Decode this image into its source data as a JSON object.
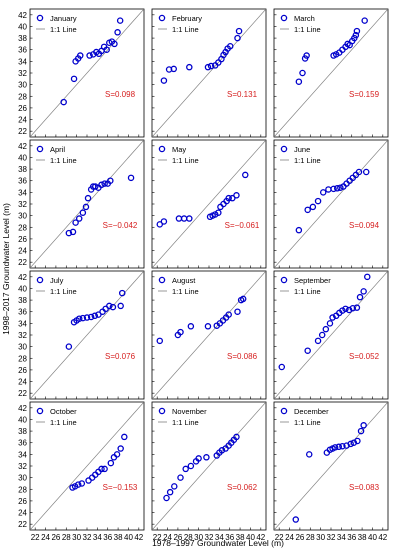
{
  "colors": {
    "marker": "#0000cc",
    "stat": "#d62020",
    "line": "#808080",
    "frame": "#000000"
  },
  "chart_data": {
    "type": "scatter",
    "xlabel": "1978–1997 Groundwater Level (m)",
    "ylabel": "1998–2017 Groundwater Level (m)",
    "xlim": [
      21,
      43
    ],
    "ylim": [
      21,
      43
    ],
    "xticks": [
      "22",
      "24",
      "26",
      "28",
      "30",
      "32",
      "34",
      "36",
      "38",
      "40",
      "42"
    ],
    "yticks": [
      "22",
      "24",
      "26",
      "28",
      "30",
      "32",
      "34",
      "36",
      "38",
      "40",
      "42"
    ],
    "legend": {
      "marker_label": "January",
      "line_label": "1:1 Line"
    },
    "panels": [
      {
        "name": "January",
        "stat": "S=0.098",
        "points": [
          [
            27.5,
            27
          ],
          [
            29.5,
            31
          ],
          [
            29.8,
            34
          ],
          [
            30.3,
            34.5
          ],
          [
            30.7,
            35
          ],
          [
            32.5,
            35
          ],
          [
            33.2,
            35.2
          ],
          [
            33.8,
            35.6
          ],
          [
            34.3,
            35.3
          ],
          [
            34.8,
            35.8
          ],
          [
            35.3,
            36.5
          ],
          [
            35.8,
            36
          ],
          [
            36.3,
            37.2
          ],
          [
            36.8,
            37.4
          ],
          [
            37.3,
            37
          ],
          [
            37.9,
            39
          ],
          [
            38.4,
            41
          ]
        ]
      },
      {
        "name": "February",
        "stat": "S=0.131",
        "points": [
          [
            20.3,
            28
          ],
          [
            23.3,
            30.7
          ],
          [
            24.3,
            32.6
          ],
          [
            25.2,
            32.7
          ],
          [
            28.2,
            33
          ],
          [
            31.8,
            33
          ],
          [
            32.4,
            33.2
          ],
          [
            33.2,
            33.3
          ],
          [
            33.8,
            33.8
          ],
          [
            34.4,
            34.4
          ],
          [
            34.8,
            35.1
          ],
          [
            35.2,
            35.6
          ],
          [
            35.6,
            36.2
          ],
          [
            36.1,
            36.6
          ],
          [
            37.5,
            38
          ],
          [
            37.8,
            39.2
          ]
        ]
      },
      {
        "name": "March",
        "stat": "S=0.159",
        "points": [
          [
            25.8,
            30.5
          ],
          [
            26.5,
            32
          ],
          [
            27,
            34.5
          ],
          [
            27.3,
            35
          ],
          [
            32.5,
            35
          ],
          [
            33,
            35.2
          ],
          [
            33.6,
            35.5
          ],
          [
            34.2,
            36
          ],
          [
            34.8,
            36.5
          ],
          [
            35.2,
            37
          ],
          [
            35.6,
            36.8
          ],
          [
            36.1,
            37.5
          ],
          [
            36.5,
            38
          ],
          [
            36.8,
            38.5
          ],
          [
            37,
            39.2
          ],
          [
            38.5,
            41
          ]
        ]
      },
      {
        "name": "April",
        "stat": "S=−0.042",
        "points": [
          [
            28.5,
            27
          ],
          [
            29.3,
            27.2
          ],
          [
            29.8,
            28.8
          ],
          [
            30.5,
            29.5
          ],
          [
            31.2,
            30.5
          ],
          [
            31.8,
            31.5
          ],
          [
            32.2,
            33
          ],
          [
            32.8,
            34.5
          ],
          [
            33.2,
            35
          ],
          [
            33.6,
            35
          ],
          [
            34.2,
            34.8
          ],
          [
            34.8,
            35.3
          ],
          [
            35.4,
            35.5
          ],
          [
            36,
            35.5
          ],
          [
            36.5,
            36
          ],
          [
            40.5,
            36.5
          ]
        ]
      },
      {
        "name": "May",
        "stat": "S=−0.061",
        "points": [
          [
            22.5,
            28.5
          ],
          [
            23.3,
            29
          ],
          [
            26.2,
            29.5
          ],
          [
            27.2,
            29.5
          ],
          [
            28.2,
            29.5
          ],
          [
            32.2,
            29.8
          ],
          [
            32.7,
            30
          ],
          [
            33.2,
            30.2
          ],
          [
            33.8,
            30.5
          ],
          [
            34.2,
            31.5
          ],
          [
            34.8,
            32
          ],
          [
            35.4,
            32.5
          ],
          [
            35.8,
            33
          ],
          [
            36.5,
            33
          ],
          [
            37.3,
            33.5
          ],
          [
            39,
            37
          ]
        ]
      },
      {
        "name": "June",
        "stat": "S=0.094",
        "points": [
          [
            25.8,
            27.5
          ],
          [
            27.5,
            31
          ],
          [
            28.5,
            31.5
          ],
          [
            29.5,
            32.5
          ],
          [
            30.5,
            34
          ],
          [
            31.5,
            34.5
          ],
          [
            32.5,
            34.6
          ],
          [
            33.2,
            34.7
          ],
          [
            33.8,
            34.8
          ],
          [
            34.4,
            35
          ],
          [
            35,
            35.5
          ],
          [
            35.6,
            36
          ],
          [
            36.2,
            36.5
          ],
          [
            36.8,
            37
          ],
          [
            37.4,
            37.5
          ],
          [
            38.8,
            37.5
          ]
        ]
      },
      {
        "name": "July",
        "stat": "S=0.076",
        "points": [
          [
            28.5,
            30
          ],
          [
            29.5,
            34.2
          ],
          [
            30,
            34.5
          ],
          [
            30.5,
            34.8
          ],
          [
            31.2,
            34.9
          ],
          [
            32,
            35
          ],
          [
            32.8,
            35.1
          ],
          [
            33.5,
            35.3
          ],
          [
            34.2,
            35.5
          ],
          [
            35,
            36
          ],
          [
            35.6,
            36.5
          ],
          [
            36.3,
            37
          ],
          [
            37,
            36.8
          ],
          [
            38.5,
            37
          ],
          [
            38.8,
            39.2
          ]
        ]
      },
      {
        "name": "August",
        "stat": "S=0.086",
        "points": [
          [
            22.5,
            31
          ],
          [
            26,
            32
          ],
          [
            26.5,
            32.5
          ],
          [
            28.5,
            33.5
          ],
          [
            31.8,
            33.5
          ],
          [
            33.5,
            33.6
          ],
          [
            34.1,
            34
          ],
          [
            34.7,
            34.5
          ],
          [
            35.3,
            35
          ],
          [
            35.8,
            35.5
          ],
          [
            37.5,
            36
          ],
          [
            38.2,
            38
          ],
          [
            38.6,
            38.2
          ]
        ]
      },
      {
        "name": "September",
        "stat": "S=0.052",
        "points": [
          [
            22.5,
            26.5
          ],
          [
            27.5,
            29.3
          ],
          [
            29.5,
            31
          ],
          [
            30.3,
            32
          ],
          [
            31,
            33
          ],
          [
            31.8,
            34
          ],
          [
            32.3,
            35
          ],
          [
            33,
            35.3
          ],
          [
            33.6,
            35.8
          ],
          [
            34.2,
            36.2
          ],
          [
            34.8,
            36.5
          ],
          [
            35.5,
            36.3
          ],
          [
            36.2,
            36.6
          ],
          [
            37,
            36.7
          ],
          [
            37.6,
            38.5
          ],
          [
            38.3,
            39.5
          ],
          [
            39,
            42
          ]
        ]
      },
      {
        "name": "October",
        "stat": "S=−0.153",
        "points": [
          [
            29.2,
            28.3
          ],
          [
            29.7,
            28.5
          ],
          [
            30.3,
            28.8
          ],
          [
            31,
            29
          ],
          [
            32.3,
            29.5
          ],
          [
            33,
            30
          ],
          [
            33.6,
            30.5
          ],
          [
            34.2,
            31
          ],
          [
            34.8,
            31.5
          ],
          [
            35.4,
            31.5
          ],
          [
            36.6,
            32.5
          ],
          [
            37.2,
            33.5
          ],
          [
            37.8,
            34
          ],
          [
            38.5,
            35
          ],
          [
            39.2,
            37
          ]
        ]
      },
      {
        "name": "November",
        "stat": "S=0.062",
        "points": [
          [
            23.8,
            26.5
          ],
          [
            24.5,
            27.5
          ],
          [
            25.3,
            28.5
          ],
          [
            26.5,
            30
          ],
          [
            27.5,
            31.5
          ],
          [
            28.5,
            32
          ],
          [
            29.5,
            32.8
          ],
          [
            30,
            33.3
          ],
          [
            31.5,
            33.5
          ],
          [
            33.5,
            33.8
          ],
          [
            34,
            34.3
          ],
          [
            34.5,
            34.7
          ],
          [
            35.2,
            35
          ],
          [
            35.8,
            35.5
          ],
          [
            36.3,
            36
          ],
          [
            36.8,
            36.5
          ],
          [
            37.3,
            37
          ]
        ]
      },
      {
        "name": "December",
        "stat": "S=0.083",
        "points": [
          [
            25.2,
            22.8
          ],
          [
            27.8,
            34
          ],
          [
            31.2,
            34.3
          ],
          [
            31.8,
            34.8
          ],
          [
            32.3,
            35
          ],
          [
            32.8,
            35.2
          ],
          [
            33.5,
            35.3
          ],
          [
            34.2,
            35.4
          ],
          [
            35,
            35.5
          ],
          [
            35.8,
            35.8
          ],
          [
            36.4,
            36
          ],
          [
            37.1,
            36.3
          ],
          [
            37.8,
            38
          ],
          [
            38.3,
            39
          ]
        ]
      }
    ]
  }
}
